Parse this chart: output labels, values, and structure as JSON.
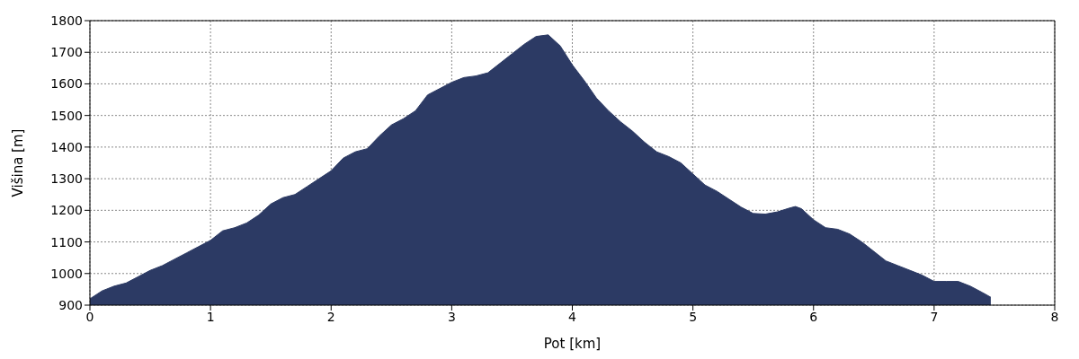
{
  "chart_data": {
    "type": "area",
    "xlabel": "Pot [km]",
    "ylabel": "Višina [m]",
    "color": "#2c3a64",
    "x": [
      0,
      0.1,
      0.2,
      0.3,
      0.4,
      0.5,
      0.6,
      0.7,
      0.8,
      0.9,
      1,
      1.1,
      1.2,
      1.3,
      1.4,
      1.5,
      1.6,
      1.7,
      1.8,
      1.9,
      2,
      2.1,
      2.2,
      2.3,
      2.4,
      2.5,
      2.6,
      2.7,
      2.8,
      2.9,
      3,
      3.1,
      3.2,
      3.3,
      3.4,
      3.5,
      3.6,
      3.7,
      3.8,
      3.9,
      4,
      4.1,
      4.2,
      4.3,
      4.4,
      4.5,
      4.6,
      4.7,
      4.8,
      4.9,
      5,
      5.1,
      5.2,
      5.3,
      5.4,
      5.5,
      5.6,
      5.7,
      5.8,
      5.85,
      5.9,
      6,
      6.1,
      6.2,
      6.3,
      6.4,
      6.5,
      6.6,
      6.7,
      6.8,
      6.9,
      7,
      7.1,
      7.2,
      7.3,
      7.4,
      7.47
    ],
    "values": [
      920,
      945,
      960,
      970,
      990,
      1010,
      1025,
      1045,
      1065,
      1085,
      1105,
      1135,
      1145,
      1160,
      1185,
      1220,
      1240,
      1250,
      1275,
      1300,
      1325,
      1365,
      1385,
      1395,
      1435,
      1470,
      1490,
      1515,
      1565,
      1585,
      1605,
      1620,
      1625,
      1635,
      1665,
      1695,
      1725,
      1750,
      1755,
      1720,
      1660,
      1610,
      1555,
      1515,
      1480,
      1450,
      1415,
      1385,
      1370,
      1350,
      1315,
      1280,
      1260,
      1235,
      1210,
      1190,
      1188,
      1195,
      1207,
      1212,
      1205,
      1170,
      1145,
      1140,
      1125,
      1100,
      1070,
      1040,
      1025,
      1010,
      995,
      975,
      975,
      975,
      960,
      940,
      925
    ],
    "xlim": [
      0,
      8
    ],
    "xticks": [
      0,
      1,
      2,
      3,
      4,
      5,
      6,
      7,
      8
    ],
    "ylim": [
      900,
      1800
    ],
    "yticks": [
      900,
      1000,
      1100,
      1200,
      1300,
      1400,
      1500,
      1600,
      1700,
      1800
    ],
    "grid": true
  }
}
